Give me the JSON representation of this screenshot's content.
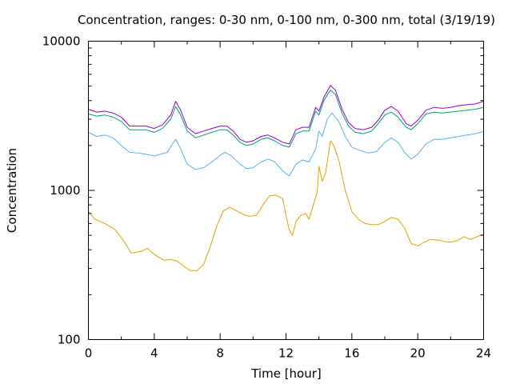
{
  "chart_data": {
    "type": "line",
    "title": "Concentration, ranges: 0-30 nm, 0-100 nm, 0-300 nm, total (3/19/19)",
    "xlabel": "Time [hour]",
    "ylabel": "Concentration",
    "xlim": [
      0,
      24
    ],
    "ylim": [
      100,
      10000
    ],
    "yscale": "log",
    "grid": false,
    "legend": "none",
    "x_ticks": [
      0,
      4,
      8,
      12,
      16,
      20,
      24
    ],
    "x_tick_labels": [
      "0",
      "4",
      "8",
      "12",
      "16",
      "20",
      "24"
    ],
    "y_ticks": [
      100,
      1000,
      10000
    ],
    "y_tick_labels": [
      "100",
      "1000",
      "10000"
    ],
    "series": [
      {
        "color": "#e69f00",
        "points": [
          [
            0,
            720
          ],
          [
            0.4,
            640
          ],
          [
            1,
            600
          ],
          [
            1.6,
            550
          ],
          [
            2.2,
            450
          ],
          [
            2.6,
            380
          ],
          [
            3.2,
            390
          ],
          [
            3.6,
            410
          ],
          [
            3.9,
            380
          ],
          [
            4.2,
            360
          ],
          [
            4.6,
            340
          ],
          [
            5.0,
            345
          ],
          [
            5.4,
            335
          ],
          [
            5.8,
            310
          ],
          [
            6.2,
            290
          ],
          [
            6.6,
            290
          ],
          [
            7.0,
            320
          ],
          [
            7.4,
            420
          ],
          [
            7.8,
            580
          ],
          [
            8.2,
            730
          ],
          [
            8.6,
            770
          ],
          [
            9.0,
            730
          ],
          [
            9.4,
            690
          ],
          [
            9.8,
            670
          ],
          [
            10.2,
            680
          ],
          [
            10.6,
            800
          ],
          [
            11.0,
            920
          ],
          [
            11.4,
            930
          ],
          [
            11.8,
            880
          ],
          [
            12.0,
            680
          ],
          [
            12.2,
            540
          ],
          [
            12.4,
            500
          ],
          [
            12.6,
            620
          ],
          [
            12.9,
            680
          ],
          [
            13.2,
            700
          ],
          [
            13.4,
            640
          ],
          [
            13.6,
            760
          ],
          [
            13.9,
            980
          ],
          [
            14.0,
            1450
          ],
          [
            14.2,
            1150
          ],
          [
            14.4,
            1300
          ],
          [
            14.7,
            2150
          ],
          [
            14.9,
            2000
          ],
          [
            15.2,
            1600
          ],
          [
            15.6,
            1000
          ],
          [
            16.0,
            720
          ],
          [
            16.4,
            640
          ],
          [
            16.8,
            600
          ],
          [
            17.2,
            590
          ],
          [
            17.6,
            590
          ],
          [
            18.0,
            620
          ],
          [
            18.4,
            660
          ],
          [
            18.8,
            640
          ],
          [
            19.2,
            560
          ],
          [
            19.6,
            440
          ],
          [
            20.0,
            425
          ],
          [
            20.4,
            450
          ],
          [
            20.8,
            470
          ],
          [
            21.2,
            465
          ],
          [
            21.6,
            455
          ],
          [
            22.0,
            450
          ],
          [
            22.4,
            460
          ],
          [
            22.8,
            490
          ],
          [
            23.2,
            470
          ],
          [
            23.6,
            490
          ],
          [
            24,
            510
          ]
        ]
      },
      {
        "color": "#56b4e9",
        "points": [
          [
            0,
            2450
          ],
          [
            0.5,
            2300
          ],
          [
            1.0,
            2350
          ],
          [
            1.5,
            2250
          ],
          [
            2.0,
            2000
          ],
          [
            2.5,
            1800
          ],
          [
            3.0,
            1780
          ],
          [
            3.5,
            1750
          ],
          [
            4.0,
            1700
          ],
          [
            4.4,
            1750
          ],
          [
            4.8,
            1800
          ],
          [
            5.1,
            2050
          ],
          [
            5.3,
            2200
          ],
          [
            5.6,
            1900
          ],
          [
            6.0,
            1500
          ],
          [
            6.5,
            1380
          ],
          [
            7.0,
            1420
          ],
          [
            7.5,
            1550
          ],
          [
            8.0,
            1720
          ],
          [
            8.3,
            1800
          ],
          [
            8.7,
            1700
          ],
          [
            9.2,
            1500
          ],
          [
            9.6,
            1400
          ],
          [
            10.0,
            1420
          ],
          [
            10.5,
            1550
          ],
          [
            10.9,
            1620
          ],
          [
            11.3,
            1560
          ],
          [
            11.8,
            1350
          ],
          [
            12.2,
            1250
          ],
          [
            12.6,
            1500
          ],
          [
            13.0,
            1600
          ],
          [
            13.4,
            1550
          ],
          [
            13.8,
            1900
          ],
          [
            14.0,
            2500
          ],
          [
            14.2,
            2300
          ],
          [
            14.5,
            3000
          ],
          [
            14.8,
            3300
          ],
          [
            15.2,
            2900
          ],
          [
            15.6,
            2300
          ],
          [
            16.0,
            1950
          ],
          [
            16.5,
            1850
          ],
          [
            17.0,
            1780
          ],
          [
            17.5,
            1820
          ],
          [
            18.0,
            2100
          ],
          [
            18.4,
            2250
          ],
          [
            18.8,
            2100
          ],
          [
            19.2,
            1800
          ],
          [
            19.6,
            1620
          ],
          [
            20.0,
            1750
          ],
          [
            20.5,
            2050
          ],
          [
            21.0,
            2200
          ],
          [
            21.5,
            2200
          ],
          [
            22.0,
            2250
          ],
          [
            22.5,
            2300
          ],
          [
            23.0,
            2350
          ],
          [
            23.5,
            2400
          ],
          [
            24,
            2480
          ]
        ]
      },
      {
        "color": "#009e73",
        "points": [
          [
            0,
            3250
          ],
          [
            0.5,
            3150
          ],
          [
            1.0,
            3200
          ],
          [
            1.5,
            3100
          ],
          [
            2.0,
            2900
          ],
          [
            2.5,
            2550
          ],
          [
            3.0,
            2550
          ],
          [
            3.5,
            2550
          ],
          [
            4.0,
            2450
          ],
          [
            4.5,
            2600
          ],
          [
            5.0,
            3000
          ],
          [
            5.3,
            3650
          ],
          [
            5.6,
            3200
          ],
          [
            6.0,
            2500
          ],
          [
            6.5,
            2250
          ],
          [
            7.0,
            2350
          ],
          [
            7.5,
            2450
          ],
          [
            8.0,
            2550
          ],
          [
            8.4,
            2550
          ],
          [
            8.8,
            2350
          ],
          [
            9.2,
            2100
          ],
          [
            9.6,
            2000
          ],
          [
            10.0,
            2050
          ],
          [
            10.5,
            2200
          ],
          [
            10.9,
            2250
          ],
          [
            11.3,
            2150
          ],
          [
            11.8,
            2000
          ],
          [
            12.2,
            1950
          ],
          [
            12.6,
            2400
          ],
          [
            13.0,
            2500
          ],
          [
            13.4,
            2500
          ],
          [
            13.8,
            3400
          ],
          [
            14.0,
            3200
          ],
          [
            14.3,
            4000
          ],
          [
            14.7,
            4700
          ],
          [
            15.0,
            4400
          ],
          [
            15.4,
            3300
          ],
          [
            15.8,
            2700
          ],
          [
            16.2,
            2450
          ],
          [
            16.7,
            2400
          ],
          [
            17.2,
            2500
          ],
          [
            17.6,
            2800
          ],
          [
            18.0,
            3200
          ],
          [
            18.4,
            3350
          ],
          [
            18.8,
            3100
          ],
          [
            19.3,
            2650
          ],
          [
            19.6,
            2550
          ],
          [
            20.0,
            2800
          ],
          [
            20.5,
            3250
          ],
          [
            21.0,
            3350
          ],
          [
            21.5,
            3300
          ],
          [
            22.0,
            3350
          ],
          [
            22.5,
            3400
          ],
          [
            23.0,
            3450
          ],
          [
            23.5,
            3500
          ],
          [
            24,
            3600
          ]
        ]
      },
      {
        "color": "#9400d3",
        "points": [
          [
            0,
            3500
          ],
          [
            0.5,
            3350
          ],
          [
            1.0,
            3400
          ],
          [
            1.5,
            3300
          ],
          [
            2.0,
            3100
          ],
          [
            2.5,
            2700
          ],
          [
            3.0,
            2700
          ],
          [
            3.5,
            2700
          ],
          [
            4.0,
            2600
          ],
          [
            4.5,
            2750
          ],
          [
            5.0,
            3200
          ],
          [
            5.3,
            3950
          ],
          [
            5.6,
            3450
          ],
          [
            6.0,
            2650
          ],
          [
            6.5,
            2400
          ],
          [
            7.0,
            2500
          ],
          [
            7.5,
            2600
          ],
          [
            8.0,
            2700
          ],
          [
            8.4,
            2700
          ],
          [
            8.8,
            2500
          ],
          [
            9.2,
            2200
          ],
          [
            9.6,
            2100
          ],
          [
            10.0,
            2150
          ],
          [
            10.5,
            2300
          ],
          [
            10.9,
            2350
          ],
          [
            11.3,
            2250
          ],
          [
            11.8,
            2100
          ],
          [
            12.2,
            2050
          ],
          [
            12.6,
            2550
          ],
          [
            13.0,
            2650
          ],
          [
            13.4,
            2650
          ],
          [
            13.8,
            3600
          ],
          [
            14.0,
            3400
          ],
          [
            14.3,
            4200
          ],
          [
            14.7,
            5050
          ],
          [
            15.0,
            4700
          ],
          [
            15.4,
            3500
          ],
          [
            15.8,
            2850
          ],
          [
            16.2,
            2600
          ],
          [
            16.7,
            2550
          ],
          [
            17.2,
            2650
          ],
          [
            17.6,
            2950
          ],
          [
            18.0,
            3450
          ],
          [
            18.4,
            3650
          ],
          [
            18.8,
            3400
          ],
          [
            19.3,
            2800
          ],
          [
            19.6,
            2700
          ],
          [
            20.0,
            2950
          ],
          [
            20.5,
            3450
          ],
          [
            21.0,
            3600
          ],
          [
            21.5,
            3550
          ],
          [
            22.0,
            3600
          ],
          [
            22.5,
            3700
          ],
          [
            23.0,
            3750
          ],
          [
            23.5,
            3800
          ],
          [
            24,
            3950
          ]
        ]
      }
    ]
  }
}
